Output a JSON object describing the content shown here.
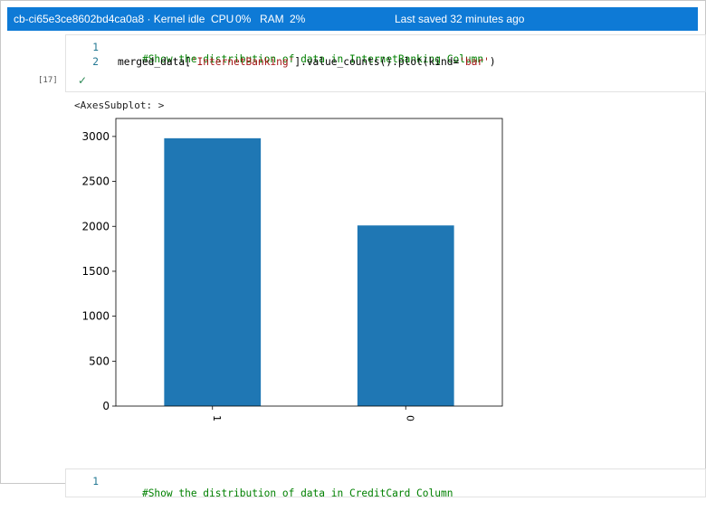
{
  "status_bar": {
    "kernel_text": "cb-ci65e3ce8602bd4ca0a8 · Kernel idle",
    "cpu_label": "CPU",
    "cpu_value": "0%",
    "ram_label": "RAM",
    "ram_value": "2%",
    "saved_text": "Last saved 32 minutes ago"
  },
  "cell1": {
    "execution_count": "[17]",
    "lines": [
      {
        "number": "1",
        "comment": "#Show the distribution of data in InternetBanking Column"
      },
      {
        "number": "2",
        "code_a": "merged_data[",
        "string": "'InternetBanking'",
        "code_b": "].value_counts().plot(kind=",
        "string2": "'bar'",
        "code_c": ")"
      }
    ],
    "status_icon": "checkmark-icon",
    "output_text": "<AxesSubplot: >"
  },
  "cell2": {
    "lines": [
      {
        "number": "1",
        "comment": "#Show the distribution of data in CreditCard Column"
      }
    ]
  },
  "chart_data": {
    "type": "bar",
    "categories": [
      "1",
      "0"
    ],
    "values": [
      2980,
      2010
    ],
    "title": "",
    "xlabel": "",
    "ylabel": "",
    "ylim": [
      0,
      3200
    ],
    "yticks": [
      0,
      500,
      1000,
      1500,
      2000,
      2500,
      3000
    ],
    "bar_color": "#1f77b4",
    "grid": false,
    "legend": "none"
  },
  "colors": {
    "status_bar": "#0e7ad6",
    "comment": "#008000",
    "string": "#a31515",
    "line_number": "#237893"
  }
}
